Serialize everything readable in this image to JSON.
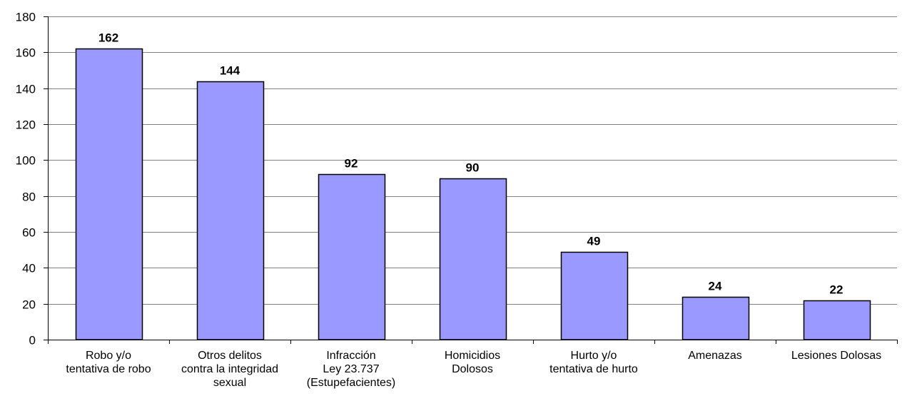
{
  "chart_data": {
    "type": "bar",
    "categories": [
      [
        "Robo y/o",
        "tentativa de robo"
      ],
      [
        "Otros delitos",
        "contra la integridad",
        "sexual"
      ],
      [
        "Infracción",
        "Ley 23.737",
        "(Estupefacientes)"
      ],
      [
        "Homicidios",
        "Dolosos"
      ],
      [
        "Hurto y/o",
        "tentativa de hurto"
      ],
      [
        "Amenazas"
      ],
      [
        "Lesiones Dolosas"
      ]
    ],
    "values": [
      162,
      144,
      92,
      90,
      49,
      24,
      22
    ],
    "ylim": [
      0,
      180
    ],
    "yticks": [
      0,
      20,
      40,
      60,
      80,
      100,
      120,
      140,
      160,
      180
    ],
    "grid": true,
    "legend": "none",
    "colors": {
      "bar_fill": "#9999ff",
      "bar_stroke": "#000000",
      "grid": "#808080",
      "axis": "#000000"
    }
  }
}
